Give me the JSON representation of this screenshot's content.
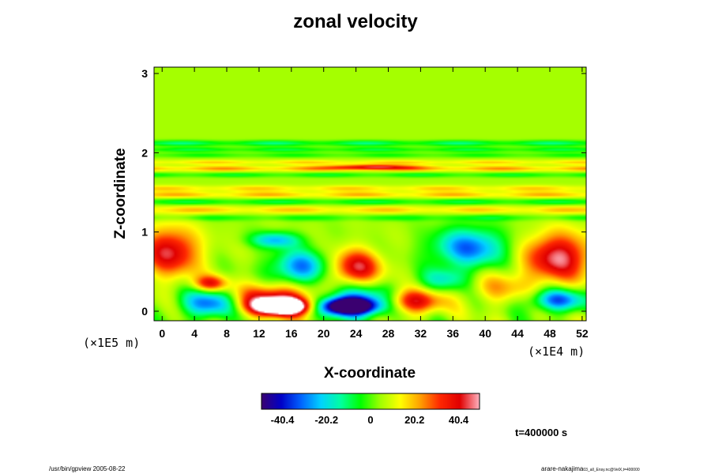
{
  "chart_data": {
    "type": "heatmap",
    "title": "zonal velocity",
    "xlabel": "X-coordinate",
    "ylabel": "Z-coordinate",
    "x_scale_label": "(×1E4 m)",
    "y_scale_label": "(×1E5 m)",
    "xlim": [
      -1,
      52.5
    ],
    "ylim": [
      -0.12,
      3.08
    ],
    "x_ticks": [
      0,
      4,
      8,
      12,
      16,
      20,
      24,
      28,
      32,
      36,
      40,
      44,
      48,
      52
    ],
    "y_ticks": [
      0,
      1,
      2,
      3
    ],
    "colorbar": {
      "range": [
        -50,
        50
      ],
      "ticks": [
        -40.4,
        -20.2,
        0,
        20.2,
        40.4
      ],
      "colors": [
        "#3a0070",
        "#0000c8",
        "#0064ff",
        "#00d2ff",
        "#00ffa0",
        "#00ff00",
        "#a0ff00",
        "#ffff00",
        "#ffa000",
        "#ff2800",
        "#e00000",
        "#ffb4c0"
      ]
    },
    "background_value": 5,
    "features": [
      {
        "x": 15,
        "z": 0.06,
        "rx": 3.5,
        "rz": 0.1,
        "value": 60
      },
      {
        "x": 14.5,
        "z": 0.14,
        "rx": 6,
        "rz": 0.2,
        "value": 42
      },
      {
        "x": 23,
        "z": 0.06,
        "rx": 3.5,
        "rz": 0.1,
        "value": -60
      },
      {
        "x": 23.5,
        "z": 0.12,
        "rx": 5.5,
        "rz": 0.2,
        "value": -40
      },
      {
        "x": 6,
        "z": 0.1,
        "rx": 3.5,
        "rz": 0.18,
        "value": -40
      },
      {
        "x": 6,
        "z": 0.35,
        "rx": 2,
        "rz": 0.1,
        "value": 32
      },
      {
        "x": 1,
        "z": 0.75,
        "rx": 3.5,
        "rz": 0.3,
        "value": 38
      },
      {
        "x": 17,
        "z": 0.55,
        "rx": 3.5,
        "rz": 0.22,
        "value": -35
      },
      {
        "x": 24,
        "z": 0.55,
        "rx": 3,
        "rz": 0.22,
        "value": 38
      },
      {
        "x": 31,
        "z": 0.12,
        "rx": 3.5,
        "rz": 0.15,
        "value": 40
      },
      {
        "x": 38,
        "z": 0.8,
        "rx": 4.5,
        "rz": 0.25,
        "value": -36
      },
      {
        "x": 49,
        "z": 0.68,
        "rx": 4,
        "rz": 0.3,
        "value": 42
      },
      {
        "x": 49,
        "z": 0.14,
        "rx": 3.5,
        "rz": 0.14,
        "value": -38
      },
      {
        "x": 35,
        "z": 0.4,
        "rx": 3,
        "rz": 0.15,
        "value": -20
      },
      {
        "x": 42,
        "z": 0.3,
        "rx": 4,
        "rz": 0.2,
        "value": 15
      },
      {
        "x": 26,
        "z": 1.82,
        "rx": 5,
        "rz": 0.03,
        "value": 30
      },
      {
        "x": 14,
        "z": 0.9,
        "rx": 3,
        "rz": 0.1,
        "value": -28
      }
    ],
    "bands": [
      {
        "z": 2.12,
        "w": 0.035,
        "value": -18
      },
      {
        "z": 2.04,
        "w": 0.03,
        "value": -14
      },
      {
        "z": 1.97,
        "w": 0.03,
        "value": -10
      },
      {
        "z": 1.88,
        "w": 0.03,
        "value": 14
      },
      {
        "z": 1.8,
        "w": 0.035,
        "value": 20
      },
      {
        "z": 1.72,
        "w": 0.03,
        "value": -12
      },
      {
        "z": 1.55,
        "w": 0.04,
        "value": 14
      },
      {
        "z": 1.47,
        "w": 0.04,
        "value": 17
      },
      {
        "z": 1.38,
        "w": 0.04,
        "value": -14
      },
      {
        "z": 1.28,
        "w": 0.05,
        "value": 15
      },
      {
        "z": 1.18,
        "w": 0.04,
        "value": -10
      }
    ]
  },
  "time_label": "t=400000 s",
  "footer_left": "/usr/bin/gpview 2005-08-22",
  "footer_right_main": "arare-nakajima",
  "footer_right_sub": "03_all_Ensy.nc@VelX,t=400000"
}
